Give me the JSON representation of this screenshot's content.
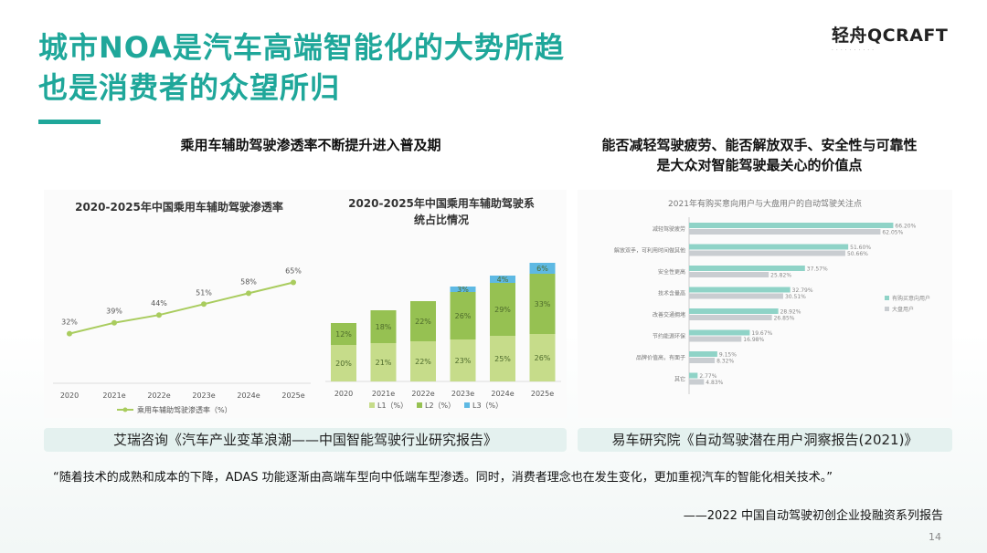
{
  "title": {
    "line1": "城市NOA是汽车高端智能化的大势所趋",
    "line2": "也是消费者的众望所归"
  },
  "logo": {
    "main": "轻舟QCRAFT"
  },
  "left_heading": "乘用车辅助驾驶渗透率不断提升进入普及期",
  "right_heading": {
    "line1": "能否减轻驾驶疲劳、能否解放双手、安全性与可靠性",
    "line2": "是大众对智能驾驶最关心的价值点"
  },
  "source_left": "艾瑞咨询《汽车产业变革浪潮——中国智能驾驶行业研究报告》",
  "source_right": "易车研究院《自动驾驶潜在用户洞察报告(2021)》",
  "quote": "“随着技术的成熟和成本的下降，ADAS 功能逐渐由高端车型向中低端车型渗透。同时，消费者理念也在发生变化，更加重视汽车的智能化相关技术。”",
  "quote_source": "——2022 中国自动驾驶初创企业投融资系列报告",
  "page_number": "14",
  "colors": {
    "accent": "#1fa79a",
    "line": "#a9cc5e",
    "l1": "#c6dc8a",
    "l2": "#96c152",
    "l3": "#5eb9e3",
    "bar_owner": "#8fd3c7",
    "bar_public": "#c9cdd1"
  },
  "chart_data": [
    {
      "type": "line",
      "title": "2020-2025年中国乘用车辅助驾驶渗透率",
      "categories": [
        "2020",
        "2021e",
        "2022e",
        "2023e",
        "2024e",
        "2025e"
      ],
      "series": [
        {
          "name": "乘用车辅助驾驶渗透率（%）",
          "values": [
            32,
            39,
            44,
            51,
            58,
            65
          ]
        }
      ],
      "value_labels": [
        "32%",
        "39%",
        "44%",
        "51%",
        "58%",
        "65%"
      ],
      "ylim": [
        0,
        100
      ],
      "legend": "bottom"
    },
    {
      "type": "bar",
      "stacked": true,
      "title_line1": "2020-2025年中国乘用车辅助驾驶系",
      "title_line2": "统占比情况",
      "categories": [
        "2020",
        "2021e",
        "2022e",
        "2023e",
        "2024e",
        "2025e"
      ],
      "series": [
        {
          "name": "L1（%）",
          "values": [
            20,
            21,
            22,
            23,
            25,
            26
          ],
          "labels": [
            "20%",
            "21%",
            "22%",
            "23%",
            "25%",
            "26%"
          ]
        },
        {
          "name": "L2（%）",
          "values": [
            12,
            18,
            22,
            26,
            29,
            33
          ],
          "labels": [
            "12%",
            "18%",
            "22%",
            "26%",
            "29%",
            "33%"
          ]
        },
        {
          "name": "L3（%）",
          "values": [
            0,
            0,
            0,
            3,
            4,
            6
          ],
          "labels": [
            "",
            "",
            "",
            "3%",
            "4%",
            "6%"
          ]
        }
      ],
      "ylim": [
        0,
        70
      ],
      "legend": "bottom"
    },
    {
      "type": "bar",
      "orientation": "horizontal",
      "title": "2021年有购买意向用户与大盘用户的自动驾驶关注点",
      "categories": [
        "减轻驾驶疲劳",
        "解放双手，可利用时间做其他",
        "安全性更高",
        "技术含量高",
        "改善交通拥堵",
        "节约能源环保",
        "品牌价值高，有面子",
        "其它"
      ],
      "series": [
        {
          "name": "有购买意向用户",
          "values": [
            66.2,
            51.6,
            37.57,
            32.79,
            28.92,
            19.67,
            9.15,
            2.77
          ],
          "labels": [
            "66.20%",
            "51.60%",
            "37.57%",
            "32.79%",
            "28.92%",
            "19.67%",
            "9.15%",
            "2.77%"
          ]
        },
        {
          "name": "大盘用户",
          "values": [
            62.05,
            50.66,
            25.82,
            30.51,
            26.85,
            16.98,
            8.32,
            4.83
          ],
          "labels": [
            "62.05%",
            "50.66%",
            "25.82%",
            "30.51%",
            "26.85%",
            "16.98%",
            "8.32%",
            "4.83%"
          ]
        }
      ],
      "xlim": [
        0,
        80
      ],
      "legend": "right"
    }
  ]
}
